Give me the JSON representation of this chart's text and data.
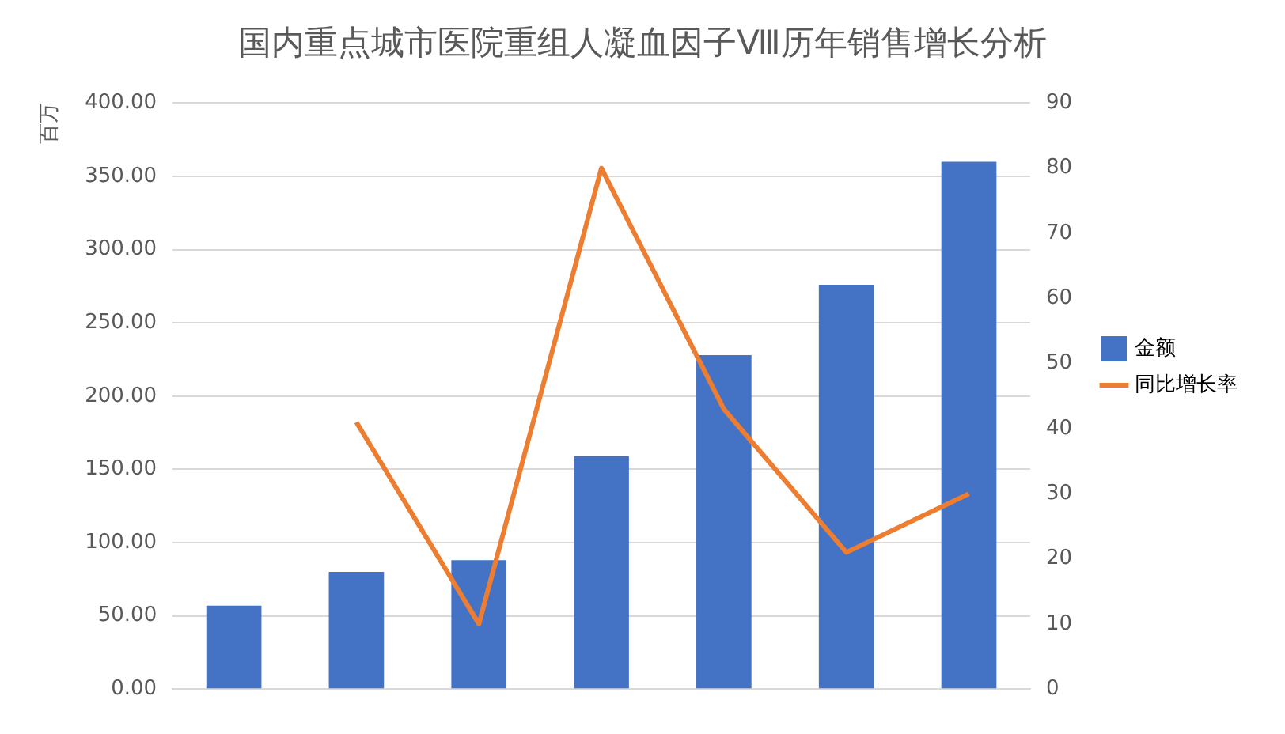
{
  "chart_data": {
    "type": "bar",
    "title": "国内重点城市医院重组人凝血因子Ⅷ历年销售增长分析",
    "ylabel": "百万",
    "categories": [
      null,
      null,
      null,
      null,
      null,
      null,
      null
    ],
    "series": [
      {
        "name": "金额",
        "color": "#4472c4",
        "values": [
          57,
          80,
          88,
          159,
          228,
          276,
          360
        ]
      },
      {
        "name": "同比增长率",
        "type": "line",
        "axis": "y2",
        "color": "#ed7d31",
        "values": [
          null,
          41,
          10,
          80,
          43,
          21,
          30
        ]
      }
    ],
    "ylim": [
      0,
      400
    ],
    "yticks": [
      {
        "value": 0,
        "label": "0.00"
      },
      {
        "value": 50,
        "label": "50.00"
      },
      {
        "value": 100,
        "label": "100.00"
      },
      {
        "value": 150,
        "label": "150.00"
      },
      {
        "value": 200,
        "label": "200.00"
      },
      {
        "value": 250,
        "label": "250.00"
      },
      {
        "value": 300,
        "label": "300.00"
      },
      {
        "value": 350,
        "label": "350.00"
      },
      {
        "value": 400,
        "label": "400.00"
      }
    ],
    "y2lim": [
      0,
      90
    ],
    "y2ticks": [
      0,
      10,
      20,
      30,
      40,
      50,
      60,
      70,
      80,
      90
    ],
    "grid": "y",
    "legend": "right",
    "marker": "none"
  }
}
